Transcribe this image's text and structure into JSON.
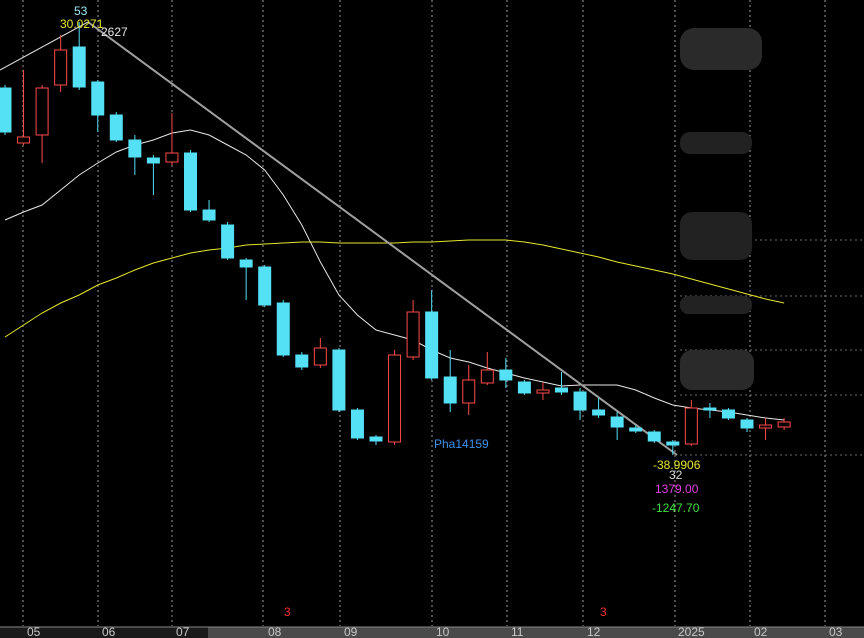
{
  "chart_data": {
    "type": "candlestick",
    "categories": [
      null,
      null,
      null,
      null,
      null,
      null,
      null,
      null,
      null,
      null,
      null,
      null,
      null,
      null,
      null,
      null,
      null,
      null,
      null,
      null,
      null,
      null,
      null,
      null,
      null,
      null,
      null,
      null,
      null,
      null,
      null,
      null,
      null,
      null,
      null,
      null,
      null,
      null,
      null,
      null,
      null,
      null,
      null
    ],
    "open": [
      542,
      487,
      495,
      545,
      583,
      548,
      515,
      490,
      472,
      468,
      477,
      420,
      405,
      370,
      363,
      327,
      275,
      265,
      280,
      220,
      193,
      188,
      273,
      318,
      253,
      227,
      247,
      260,
      248,
      237,
      242,
      238,
      220,
      213,
      202,
      198,
      188,
      186,
      222,
      220,
      210,
      202,
      203
    ],
    "high": [
      545,
      560,
      545,
      595,
      608,
      550,
      518,
      495,
      475,
      517,
      480,
      430,
      408,
      372,
      365,
      330,
      278,
      292,
      282,
      222,
      195,
      280,
      330,
      340,
      280,
      265,
      278,
      272,
      250,
      248,
      258,
      242,
      232,
      218,
      205,
      200,
      190,
      230,
      227,
      222,
      212,
      212,
      212
    ],
    "low": [
      495,
      485,
      467,
      538,
      540,
      498,
      488,
      455,
      435,
      465,
      418,
      408,
      370,
      330,
      323,
      273,
      260,
      262,
      218,
      190,
      185,
      185,
      270,
      250,
      218,
      215,
      245,
      242,
      235,
      230,
      235,
      210,
      212,
      190,
      197,
      187,
      175,
      184,
      212,
      210,
      198,
      190,
      200
    ],
    "close": [
      498,
      493,
      542,
      580,
      543,
      515,
      490,
      473,
      467,
      477,
      420,
      410,
      372,
      363,
      325,
      275,
      263,
      282,
      220,
      192,
      189,
      275,
      318,
      252,
      227,
      250,
      260,
      250,
      237,
      240,
      238,
      220,
      215,
      203,
      199,
      189,
      185,
      222,
      220,
      212,
      202,
      205,
      208
    ],
    "up_color": "#ff4a4a",
    "down_color": "#54e0f5",
    "series": [
      {
        "color": "#e8e8e8",
        "values": [
          410,
          418,
          425,
          440,
          455,
          467,
          478,
          485,
          490,
          497,
          500,
          495,
          485,
          475,
          460,
          435,
          405,
          368,
          335,
          315,
          300,
          295,
          290,
          280,
          272,
          268,
          262,
          257,
          252,
          248,
          244,
          245,
          245,
          245,
          240,
          232,
          225,
          222,
          220,
          218,
          215,
          212,
          210
        ]
      },
      {
        "color": "#e6e62e",
        "values": [
          293,
          305,
          317,
          327,
          335,
          345,
          352,
          360,
          367,
          372,
          377,
          380,
          382,
          385,
          386,
          387,
          388,
          388,
          387,
          387,
          387,
          387,
          388,
          388,
          389,
          390,
          390,
          390,
          388,
          385,
          381,
          377,
          373,
          368,
          364,
          360,
          356,
          351,
          346,
          341,
          336,
          331,
          327
        ]
      }
    ],
    "ylim": [
      0,
      630
    ],
    "time_labels": [
      "05",
      "06",
      "07",
      "08",
      "09",
      "10",
      "11",
      "12",
      "2025",
      "02",
      "03"
    ],
    "markers": [
      "3",
      "3"
    ],
    "annotations": {
      "top_high": "53",
      "top_value": "30.0271",
      "top_right": "2627",
      "watermark": "Pha14159",
      "low_value": "-38.9906",
      "low_index": "32",
      "stat_1": "1379.00",
      "stat_2": "-1247.70"
    }
  }
}
